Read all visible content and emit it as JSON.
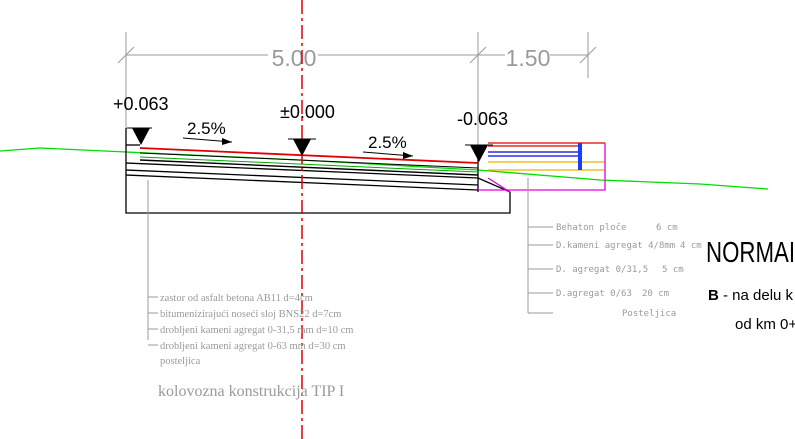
{
  "dimensions": {
    "total_width": "5.00",
    "shoulder_width": "1.50"
  },
  "elevations": {
    "left": "+0.063",
    "center": "±0.000",
    "right": "-0.063"
  },
  "slopes": {
    "left": "2.5%",
    "right": "2.5%"
  },
  "road_layers": [
    "zastor od asfalt betona AB11 d=4cm",
    "bitumenizirajući noseći sloj BNS22 d=7cm",
    "drobljeni kameni agregat 0-31,5 mm d=10 cm",
    "drobljeni kameni agregat 0-63 mm d=30 cm",
    "posteljica"
  ],
  "road_caption": "kolovozna konstrukcija TIP I",
  "paver_layers": [
    {
      "name": "Behaton ploče",
      "thickness": "6 cm"
    },
    {
      "name": "D.kameni agregat 4/8mm",
      "thickness": "4 cm"
    },
    {
      "name": "D. agregat 0/31,5",
      "thickness": "5 cm"
    },
    {
      "name": "D.agregat 0/63",
      "thickness": "20 cm"
    }
  ],
  "paver_base": "Posteljica",
  "title": {
    "heading": "NORMAI",
    "line1_bold": "B",
    "line1_rest": " - na delu k",
    "line2": "od km 0+"
  },
  "colors": {
    "asphalt": "#e00000",
    "base": "#000000",
    "terrain": "#00dd00",
    "axis": "#e00000",
    "dimension": "#9a9a9a",
    "paver_top": "#e00000",
    "paver_blue": "#0000e0",
    "paver_yellow": "#e8b400",
    "paver_magenta": "#e000e0",
    "edge_blue": "#1a3cff"
  }
}
